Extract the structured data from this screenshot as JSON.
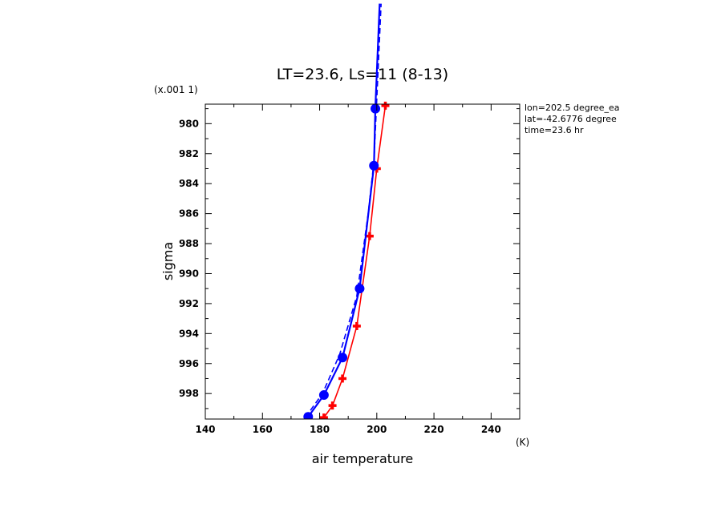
{
  "chart_data": {
    "type": "line",
    "title": "LT=23.6, Ls=11 (8-13)",
    "xlabel": "air temperature",
    "xunit": "(K)",
    "ylabel": "sigma",
    "yscale_note": "(x.001 1)",
    "xlim": [
      140,
      250
    ],
    "ylim": [
      999.7,
      978.7
    ],
    "y_inverted": true,
    "xticks": [
      140,
      160,
      180,
      200,
      220,
      240
    ],
    "yticks": [
      980,
      982,
      984,
      986,
      988,
      990,
      992,
      994,
      996,
      998
    ],
    "grid": false,
    "legend": "none",
    "info_lines": [
      "lon=202.5 degree_ea",
      "lat=-42.6776 degree",
      "time=23.6 hr"
    ],
    "series": [
      {
        "color": "#ff0000",
        "marker": "plus",
        "style": "solid",
        "x": [
          181.5,
          184.5,
          188.0,
          193.0,
          197.5,
          200.0,
          203.0
        ],
        "y": [
          999.6,
          998.8,
          997.0,
          993.5,
          987.5,
          983.0,
          978.8
        ]
      },
      {
        "color": "#0000ff",
        "marker": "circle",
        "style": "solid",
        "x": [
          176.0,
          181.5,
          188.0,
          194.0,
          199.0,
          199.5,
          201.0
        ],
        "y": [
          999.55,
          998.1,
          995.6,
          991.0,
          982.8,
          979.0,
          972.0
        ]
      },
      {
        "color": "#0000ff",
        "marker": "none",
        "style": "dashed",
        "x": [
          175.0,
          181.0,
          187.0,
          193.0,
          197.0,
          199.0,
          201.5
        ],
        "y": [
          999.6,
          998.0,
          995.4,
          991.5,
          986.0,
          982.5,
          972.0
        ]
      }
    ]
  }
}
